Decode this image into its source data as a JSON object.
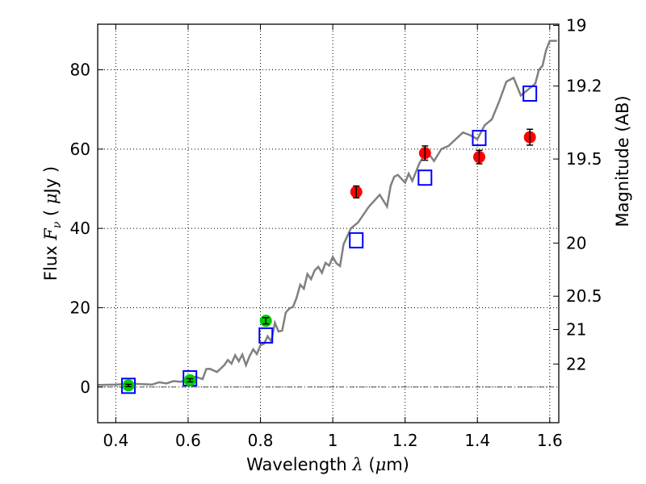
{
  "chart_data": {
    "type": "scatter",
    "xlabel": "Wavelength  λ (μm)",
    "ylabel": "Flux  Fν  ( μJy )",
    "y2label": "Magnitude (AB)",
    "xlim": [
      0.35,
      1.625
    ],
    "ylim": [
      -9,
      91.5
    ],
    "xticks": [
      0.4,
      0.6,
      0.8,
      1.0,
      1.2,
      1.4,
      1.6
    ],
    "xtick_labels": [
      "0.4",
      "0.6",
      "0.8",
      "1",
      "1.2",
      "1.4",
      "1.6"
    ],
    "yticks": [
      0,
      20,
      40,
      60,
      80
    ],
    "ytick_labels": [
      "0",
      "20",
      "40",
      "60",
      "80"
    ],
    "y2ticks": [
      {
        "label": "19",
        "flux": 91.2
      },
      {
        "label": "19.2",
        "flux": 75.9
      },
      {
        "label": "19.5",
        "flux": 57.5
      },
      {
        "label": "20",
        "flux": 36.3
      },
      {
        "label": "20.5",
        "flux": 22.9
      },
      {
        "label": "21",
        "flux": 14.5
      },
      {
        "label": "22",
        "flux": 5.8
      }
    ],
    "grid": true,
    "zero_line": true,
    "series": [
      {
        "kind": "line",
        "color": "#808080",
        "x": [
          0.35,
          0.4,
          0.45,
          0.5,
          0.52,
          0.54,
          0.56,
          0.58,
          0.6,
          0.62,
          0.64,
          0.65,
          0.66,
          0.68,
          0.7,
          0.71,
          0.72,
          0.73,
          0.74,
          0.75,
          0.76,
          0.77,
          0.78,
          0.79,
          0.8,
          0.81,
          0.82,
          0.83,
          0.84,
          0.85,
          0.86,
          0.87,
          0.88,
          0.89,
          0.9,
          0.91,
          0.92,
          0.93,
          0.94,
          0.95,
          0.96,
          0.97,
          0.98,
          0.99,
          1.0,
          1.01,
          1.02,
          1.03,
          1.05,
          1.07,
          1.1,
          1.13,
          1.15,
          1.16,
          1.17,
          1.18,
          1.2,
          1.21,
          1.22,
          1.24,
          1.26,
          1.28,
          1.3,
          1.32,
          1.34,
          1.36,
          1.38,
          1.4,
          1.42,
          1.44,
          1.46,
          1.48,
          1.5,
          1.52,
          1.54,
          1.56,
          1.57,
          1.58,
          1.59,
          1.6,
          1.62
        ],
        "y": [
          0.5,
          0.6,
          0.8,
          0.6,
          1.2,
          0.9,
          1.5,
          1.3,
          2.2,
          2.6,
          2.0,
          4.5,
          4.6,
          3.8,
          5.5,
          6.8,
          5.9,
          8.0,
          6.5,
          8.2,
          5.5,
          7.8,
          9.5,
          8.3,
          10.5,
          10.9,
          12.8,
          11.5,
          16.2,
          14.0,
          14.2,
          18.8,
          19.8,
          20.2,
          22.5,
          25.8,
          24.8,
          28.5,
          27.2,
          29.4,
          30.3,
          28.8,
          31.3,
          30.6,
          32.8,
          31.2,
          30.5,
          36.0,
          40.0,
          41.5,
          45.5,
          48.5,
          45.5,
          50.8,
          53.0,
          53.5,
          51.5,
          53.8,
          52.0,
          56.5,
          59.5,
          57.0,
          60.0,
          60.8,
          62.5,
          64.2,
          63.5,
          62.5,
          66.0,
          67.5,
          72.0,
          77.0,
          78.0,
          73.5,
          75.0,
          76.5,
          80.0,
          81.0,
          85.0,
          87.3,
          87.3
        ]
      },
      {
        "kind": "points",
        "marker": "square",
        "color": "#0000ff",
        "x": [
          0.435,
          0.605,
          0.815,
          1.065,
          1.255,
          1.405,
          1.545
        ],
        "y": [
          0.3,
          2.2,
          13.0,
          37.0,
          52.8,
          62.8,
          74.0
        ]
      },
      {
        "kind": "points",
        "marker": "circle",
        "color": "#00cc00",
        "x": [
          0.435,
          0.605,
          0.815
        ],
        "y": [
          0.4,
          1.7,
          16.7
        ],
        "yerr": [
          0.3,
          0.4,
          0.8
        ]
      },
      {
        "kind": "points",
        "marker": "circle",
        "color": "#ff0000",
        "x": [
          1.065,
          1.255,
          1.405,
          1.545
        ],
        "y": [
          49.2,
          59.0,
          58.0,
          63.0
        ],
        "yerr": [
          1.5,
          1.8,
          1.7,
          2.0
        ]
      }
    ]
  }
}
